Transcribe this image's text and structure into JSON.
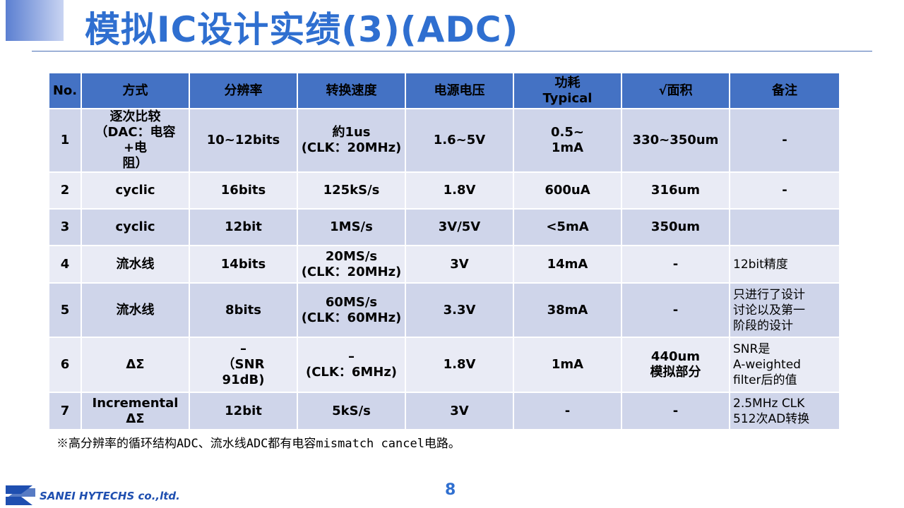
{
  "header": {
    "title": "模拟IC设计实绩(3)(ADC)"
  },
  "table": {
    "headers": [
      "No.",
      "方式",
      "分辨率",
      "转换速度",
      "电源电压",
      "功耗\nTypical",
      "√面积",
      "备注"
    ],
    "rows": [
      [
        "1",
        "逐次比较\n（DAC：电容+电\n阻）",
        "10~12bits",
        "約1us\n(CLK：20MHz)",
        "1.6~5V",
        "0.5~\n1mA",
        "330~350um",
        "-"
      ],
      [
        "2",
        "cyclic",
        "16bits",
        "125kS/s",
        "1.8V",
        "600uA",
        "316um",
        "-"
      ],
      [
        "3",
        "cyclic",
        "12bit",
        "1MS/s",
        "3V/5V",
        "<5mA",
        "350um",
        null
      ],
      [
        "4",
        "流水线",
        "14bits",
        "20MS/s\n(CLK：20MHz)",
        "3V",
        "14mA",
        "-",
        "12bit精度"
      ],
      [
        "5",
        "流水线",
        "8bits",
        "60MS/s\n(CLK：60MHz)",
        "3.3V",
        "38mA",
        "-",
        "只进行了设计\n讨论以及第一\n阶段的设计"
      ],
      [
        "6",
        "ΔΣ",
        "–\n（SNR\n91dB)",
        "–\n(CLK：6MHz)",
        "1.8V",
        "1mA",
        "440um\n模拟部分",
        "SNR是\nA-weighted\nfilter后的值"
      ],
      [
        "7",
        "Incremental\nΔΣ",
        "12bit",
        "5kS/s",
        "3V",
        "-",
        "-",
        "2.5MHz CLK\n512次AD转换"
      ]
    ]
  },
  "footnote": "※高分辨率的循环结构ADC、流水线ADC都有电容mismatch cancel电路。",
  "page_number": "8",
  "logo": "SANEI HYTECHS co.,ltd."
}
